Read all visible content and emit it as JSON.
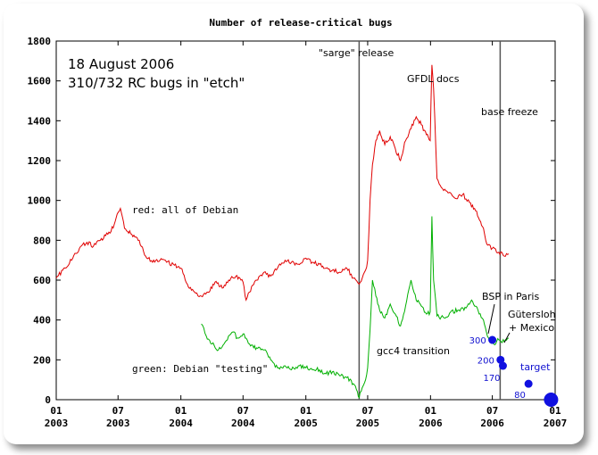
{
  "chart_data": {
    "type": "line",
    "title": "Number of release-critical bugs",
    "xlabel": "",
    "ylabel": "",
    "x_range": [
      "2003-01-01",
      "2007-01-01"
    ],
    "ylim": [
      0,
      1800
    ],
    "grid": false,
    "legend": "none",
    "y_ticks": [
      "0",
      "200",
      "400",
      "600",
      "800",
      "1000",
      "1200",
      "1400",
      "1600",
      "1800"
    ],
    "x_ticks": [
      {
        "date": "2003-01-01",
        "month": "01",
        "year": "2003"
      },
      {
        "date": "2003-07-01",
        "month": "07",
        "year": "2003"
      },
      {
        "date": "2004-01-01",
        "month": "01",
        "year": "2004"
      },
      {
        "date": "2004-07-01",
        "month": "07",
        "year": "2004"
      },
      {
        "date": "2005-01-01",
        "month": "01",
        "year": "2005"
      },
      {
        "date": "2005-07-01",
        "month": "07",
        "year": "2005"
      },
      {
        "date": "2006-01-01",
        "month": "01",
        "year": "2006"
      },
      {
        "date": "2006-07-01",
        "month": "07",
        "year": "2006"
      },
      {
        "date": "2007-01-01",
        "month": "01",
        "year": "2007"
      }
    ],
    "status": {
      "date_line": "18 August 2006",
      "count_line": "310/732 RC bugs in \"etch\""
    },
    "series": [
      {
        "key": "all_debian",
        "color": "#e00000",
        "label": "red: all of Debian",
        "points": [
          [
            "2003-01-01",
            610
          ],
          [
            "2003-01-20",
            650
          ],
          [
            "2003-02-15",
            700
          ],
          [
            "2003-03-10",
            760
          ],
          [
            "2003-04-01",
            790
          ],
          [
            "2003-04-20",
            770
          ],
          [
            "2003-05-10",
            800
          ],
          [
            "2003-06-01",
            830
          ],
          [
            "2003-06-20",
            880
          ],
          [
            "2003-07-01",
            940
          ],
          [
            "2003-07-08",
            960
          ],
          [
            "2003-07-20",
            860
          ],
          [
            "2003-08-10",
            830
          ],
          [
            "2003-09-01",
            800
          ],
          [
            "2003-09-20",
            720
          ],
          [
            "2003-10-10",
            690
          ],
          [
            "2003-11-01",
            700
          ],
          [
            "2003-11-20",
            690
          ],
          [
            "2003-12-10",
            680
          ],
          [
            "2004-01-01",
            660
          ],
          [
            "2004-01-20",
            580
          ],
          [
            "2004-02-10",
            540
          ],
          [
            "2004-03-01",
            520
          ],
          [
            "2004-03-20",
            540
          ],
          [
            "2004-04-10",
            590
          ],
          [
            "2004-05-01",
            560
          ],
          [
            "2004-05-20",
            600
          ],
          [
            "2004-06-10",
            620
          ],
          [
            "2004-07-01",
            590
          ],
          [
            "2004-07-10",
            500
          ],
          [
            "2004-07-20",
            540
          ],
          [
            "2004-08-10",
            600
          ],
          [
            "2004-09-01",
            640
          ],
          [
            "2004-09-20",
            620
          ],
          [
            "2004-10-10",
            660
          ],
          [
            "2004-11-01",
            700
          ],
          [
            "2004-11-20",
            690
          ],
          [
            "2004-12-10",
            680
          ],
          [
            "2005-01-01",
            710
          ],
          [
            "2005-01-20",
            690
          ],
          [
            "2005-02-10",
            680
          ],
          [
            "2005-03-01",
            660
          ],
          [
            "2005-03-20",
            650
          ],
          [
            "2005-04-10",
            640
          ],
          [
            "2005-05-01",
            660
          ],
          [
            "2005-05-20",
            610
          ],
          [
            "2005-06-06",
            580
          ],
          [
            "2005-06-15",
            610
          ],
          [
            "2005-06-25",
            650
          ],
          [
            "2005-07-01",
            700
          ],
          [
            "2005-07-08",
            1000
          ],
          [
            "2005-07-15",
            1180
          ],
          [
            "2005-07-25",
            1300
          ],
          [
            "2005-08-05",
            1350
          ],
          [
            "2005-08-20",
            1280
          ],
          [
            "2005-09-05",
            1320
          ],
          [
            "2005-09-20",
            1260
          ],
          [
            "2005-10-05",
            1200
          ],
          [
            "2005-10-20",
            1300
          ],
          [
            "2005-11-05",
            1360
          ],
          [
            "2005-11-20",
            1420
          ],
          [
            "2005-12-05",
            1380
          ],
          [
            "2005-12-20",
            1330
          ],
          [
            "2005-12-31",
            1300
          ],
          [
            "2006-01-05",
            1680
          ],
          [
            "2006-01-10",
            1560
          ],
          [
            "2006-01-20",
            1110
          ],
          [
            "2006-02-05",
            1060
          ],
          [
            "2006-02-25",
            1040
          ],
          [
            "2006-03-15",
            1010
          ],
          [
            "2006-04-05",
            1030
          ],
          [
            "2006-04-25",
            990
          ],
          [
            "2006-05-10",
            960
          ],
          [
            "2006-05-25",
            900
          ],
          [
            "2006-06-05",
            860
          ],
          [
            "2006-06-15",
            780
          ],
          [
            "2006-07-01",
            760
          ],
          [
            "2006-07-20",
            740
          ],
          [
            "2006-08-05",
            720
          ],
          [
            "2006-08-18",
            732
          ]
        ]
      },
      {
        "key": "testing",
        "color": "#00b000",
        "label": "green: Debian \"testing\"",
        "points": [
          [
            "2004-03-01",
            380
          ],
          [
            "2004-03-15",
            320
          ],
          [
            "2004-04-01",
            280
          ],
          [
            "2004-04-20",
            250
          ],
          [
            "2004-05-10",
            290
          ],
          [
            "2004-06-01",
            340
          ],
          [
            "2004-06-15",
            310
          ],
          [
            "2004-07-01",
            330
          ],
          [
            "2004-07-20",
            280
          ],
          [
            "2004-08-10",
            260
          ],
          [
            "2004-09-01",
            250
          ],
          [
            "2004-09-20",
            200
          ],
          [
            "2004-10-10",
            160
          ],
          [
            "2004-11-01",
            170
          ],
          [
            "2004-11-20",
            150
          ],
          [
            "2004-12-10",
            170
          ],
          [
            "2005-01-01",
            160
          ],
          [
            "2005-01-20",
            150
          ],
          [
            "2005-02-10",
            150
          ],
          [
            "2005-03-01",
            130
          ],
          [
            "2005-03-20",
            140
          ],
          [
            "2005-04-10",
            120
          ],
          [
            "2005-05-01",
            110
          ],
          [
            "2005-05-20",
            80
          ],
          [
            "2005-06-01",
            40
          ],
          [
            "2005-06-06",
            10
          ],
          [
            "2005-06-15",
            60
          ],
          [
            "2005-06-25",
            100
          ],
          [
            "2005-07-01",
            160
          ],
          [
            "2005-07-08",
            350
          ],
          [
            "2005-07-15",
            600
          ],
          [
            "2005-07-25",
            520
          ],
          [
            "2005-08-05",
            450
          ],
          [
            "2005-08-20",
            410
          ],
          [
            "2005-09-05",
            480
          ],
          [
            "2005-09-20",
            430
          ],
          [
            "2005-10-05",
            370
          ],
          [
            "2005-10-20",
            470
          ],
          [
            "2005-11-05",
            600
          ],
          [
            "2005-11-20",
            500
          ],
          [
            "2005-12-05",
            470
          ],
          [
            "2005-12-20",
            430
          ],
          [
            "2005-12-31",
            440
          ],
          [
            "2006-01-05",
            920
          ],
          [
            "2006-01-10",
            600
          ],
          [
            "2006-01-20",
            420
          ],
          [
            "2006-02-10",
            410
          ],
          [
            "2006-03-01",
            440
          ],
          [
            "2006-03-25",
            450
          ],
          [
            "2006-04-15",
            460
          ],
          [
            "2006-05-01",
            500
          ],
          [
            "2006-05-20",
            450
          ],
          [
            "2006-06-05",
            400
          ],
          [
            "2006-06-20",
            310
          ],
          [
            "2006-07-05",
            280
          ],
          [
            "2006-07-20",
            300
          ],
          [
            "2006-08-05",
            290
          ],
          [
            "2006-08-18",
            310
          ]
        ]
      }
    ],
    "events": [
      {
        "date": "2005-06-06",
        "label": "\"sarge\" release"
      },
      {
        "date": "2006-07-24",
        "label": "base freeze"
      }
    ],
    "annotations": [
      {
        "key": "gfdl",
        "label": "GFDL docs"
      },
      {
        "key": "gcc4",
        "label": "gcc4 transition"
      },
      {
        "key": "bsp",
        "label": "BSP in Paris"
      },
      {
        "key": "guetersloh",
        "label": "Gütersloh"
      },
      {
        "key": "mexico",
        "label": "+ Mexico"
      },
      {
        "key": "target",
        "label": "target"
      }
    ],
    "targets": [
      {
        "date": "2006-07-01",
        "value": 300,
        "label": "300"
      },
      {
        "date": "2006-07-25",
        "value": 200,
        "label": "200"
      },
      {
        "date": "2006-08-01",
        "value": 170,
        "label": "170"
      },
      {
        "date": "2006-10-15",
        "value": 80,
        "label": "80"
      },
      {
        "date": "2006-12-20",
        "value": 0,
        "label": ""
      }
    ]
  }
}
